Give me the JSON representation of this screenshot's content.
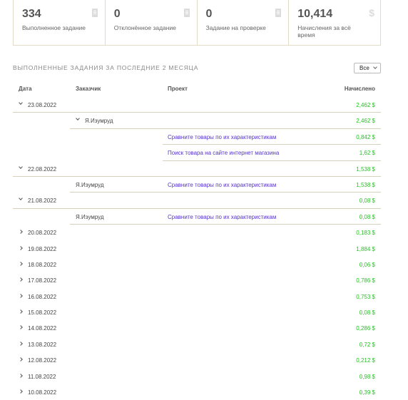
{
  "stats": [
    {
      "value": "334",
      "label": "Выполненное задание",
      "icon": "document-icon"
    },
    {
      "value": "0",
      "label": "Отклонённое задание",
      "icon": "document-icon"
    },
    {
      "value": "0",
      "label": "Задание на проверке",
      "icon": "document-icon"
    },
    {
      "value": "10,414",
      "label": "Начисления за всё время",
      "icon": "dollar-icon"
    }
  ],
  "section_title": "ВЫПОЛНЕННЫЕ ЗАДАНИЯ ЗА ПОСЛЕДНИЕ 2 МЕСЯЦА",
  "filter": {
    "selected": "Все"
  },
  "columns": {
    "date": "Дата",
    "customer": "Заказчик",
    "project": "Проект",
    "amount": "Начислено"
  },
  "rows": [
    {
      "type": "date",
      "date": "23.08.2022",
      "expanded": true,
      "amount": "2,462 $"
    },
    {
      "type": "customer",
      "customer": "Я.Изумруд",
      "expanded": true,
      "amount": "2,462 $"
    },
    {
      "type": "project",
      "project": "Сравните товары по их характеристикам",
      "amount": "0,842 $"
    },
    {
      "type": "project",
      "project": "Поиск товара на сайте интернет магазина",
      "amount": "1,62 $"
    },
    {
      "type": "date",
      "date": "22.08.2022",
      "expanded": true,
      "amount": "1,538 $"
    },
    {
      "type": "entry",
      "customer": "Я.Изумруд",
      "project": "Сравните товары по их характеристикам",
      "amount": "1,538 $"
    },
    {
      "type": "date",
      "date": "21.08.2022",
      "expanded": true,
      "amount": "0,08 $"
    },
    {
      "type": "entry",
      "customer": "Я.Изумруд",
      "project": "Сравните товары по их характеристикам",
      "amount": "0,08 $"
    },
    {
      "type": "date",
      "date": "20.08.2022",
      "expanded": false,
      "amount": "0,183 $"
    },
    {
      "type": "date",
      "date": "19.08.2022",
      "expanded": false,
      "amount": "1,884 $"
    },
    {
      "type": "date",
      "date": "18.08.2022",
      "expanded": false,
      "amount": "0,06 $"
    },
    {
      "type": "date",
      "date": "17.08.2022",
      "expanded": false,
      "amount": "0,786 $"
    },
    {
      "type": "date",
      "date": "16.08.2022",
      "expanded": false,
      "amount": "0,753 $"
    },
    {
      "type": "date",
      "date": "15.08.2022",
      "expanded": false,
      "amount": "0,08 $"
    },
    {
      "type": "date",
      "date": "14.08.2022",
      "expanded": false,
      "amount": "0,286 $"
    },
    {
      "type": "date",
      "date": "13.08.2022",
      "expanded": false,
      "amount": "0,72 $"
    },
    {
      "type": "date",
      "date": "12.08.2022",
      "expanded": false,
      "amount": "0,212 $"
    },
    {
      "type": "date",
      "date": "11.08.2022",
      "expanded": false,
      "amount": "0,98 $"
    },
    {
      "type": "date",
      "date": "10.08.2022",
      "expanded": false,
      "amount": "0,39 $"
    }
  ]
}
